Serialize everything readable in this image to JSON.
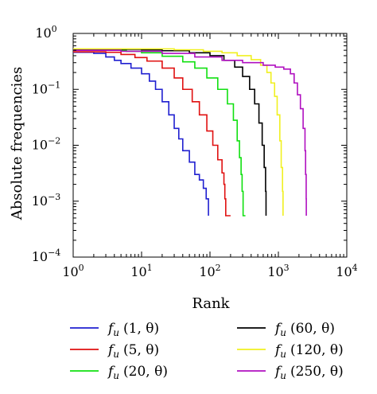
{
  "chart_data": {
    "type": "line",
    "title": "",
    "xlabel": "Rank",
    "ylabel": "Absolute frequencies",
    "xscale": "log",
    "yscale": "log",
    "xlim": [
      1,
      10000
    ],
    "ylim": [
      0.0001,
      1
    ],
    "grid": false,
    "legend_position": "bottom",
    "x_ticks": [
      {
        "value": 1,
        "base": "10",
        "exp": "0"
      },
      {
        "value": 10,
        "base": "10",
        "exp": "1"
      },
      {
        "value": 100,
        "base": "10",
        "exp": "2"
      },
      {
        "value": 1000,
        "base": "10",
        "exp": "3"
      },
      {
        "value": 10000,
        "base": "10",
        "exp": "4"
      }
    ],
    "y_ticks": [
      {
        "value": 1,
        "base": "10",
        "exp": "0"
      },
      {
        "value": 0.1,
        "base": "10",
        "exp": "−1"
      },
      {
        "value": 0.01,
        "base": "10",
        "exp": "−2"
      },
      {
        "value": 0.001,
        "base": "10",
        "exp": "−3"
      },
      {
        "value": 0.0001,
        "base": "10",
        "exp": "−4"
      }
    ],
    "series": [
      {
        "name": "f_u (1, θ)",
        "legend_var": "f",
        "legend_sub": "u",
        "legend_args": "(1, θ)",
        "color": "#1f1fd0",
        "points": [
          [
            1,
            0.46
          ],
          [
            1.5,
            0.46
          ],
          [
            2,
            0.44
          ],
          [
            3,
            0.38
          ],
          [
            4,
            0.33
          ],
          [
            5,
            0.29
          ],
          [
            7,
            0.24
          ],
          [
            10,
            0.19
          ],
          [
            13,
            0.14
          ],
          [
            16,
            0.1
          ],
          [
            20,
            0.06
          ],
          [
            25,
            0.035
          ],
          [
            30,
            0.02
          ],
          [
            35,
            0.013
          ],
          [
            40,
            0.008
          ],
          [
            50,
            0.005
          ],
          [
            60,
            0.003
          ],
          [
            70,
            0.0024
          ],
          [
            80,
            0.0017
          ],
          [
            88,
            0.0011
          ],
          [
            95,
            0.0011
          ],
          [
            95,
            0.00055
          ]
        ]
      },
      {
        "name": "f_u (5, θ)",
        "legend_var": "f",
        "legend_sub": "u",
        "legend_args": "(5, θ)",
        "color": "#e01010",
        "points": [
          [
            1,
            0.47
          ],
          [
            2,
            0.47
          ],
          [
            3,
            0.46
          ],
          [
            5,
            0.42
          ],
          [
            8,
            0.37
          ],
          [
            12,
            0.32
          ],
          [
            20,
            0.24
          ],
          [
            30,
            0.16
          ],
          [
            40,
            0.1
          ],
          [
            55,
            0.06
          ],
          [
            70,
            0.035
          ],
          [
            90,
            0.018
          ],
          [
            110,
            0.01
          ],
          [
            130,
            0.0055
          ],
          [
            150,
            0.0032
          ],
          [
            160,
            0.002
          ],
          [
            165,
            0.0011
          ],
          [
            170,
            0.00055
          ],
          [
            200,
            0.00055
          ]
        ]
      },
      {
        "name": "f_u (20, θ)",
        "legend_var": "f",
        "legend_sub": "u",
        "legend_args": "(20, θ)",
        "color": "#10e010",
        "points": [
          [
            1,
            0.5
          ],
          [
            3,
            0.5
          ],
          [
            6,
            0.48
          ],
          [
            10,
            0.45
          ],
          [
            20,
            0.39
          ],
          [
            40,
            0.31
          ],
          [
            60,
            0.24
          ],
          [
            90,
            0.16
          ],
          [
            130,
            0.1
          ],
          [
            180,
            0.055
          ],
          [
            220,
            0.028
          ],
          [
            250,
            0.012
          ],
          [
            270,
            0.006
          ],
          [
            285,
            0.003
          ],
          [
            295,
            0.0015
          ],
          [
            305,
            0.00055
          ],
          [
            330,
            0.00055
          ]
        ]
      },
      {
        "name": "f_u (60, θ)",
        "legend_var": "f",
        "legend_sub": "u",
        "legend_args": "(60, θ)",
        "color": "#000000",
        "points": [
          [
            1,
            0.52
          ],
          [
            5,
            0.52
          ],
          [
            10,
            0.51
          ],
          [
            20,
            0.49
          ],
          [
            50,
            0.45
          ],
          [
            100,
            0.4
          ],
          [
            160,
            0.33
          ],
          [
            230,
            0.25
          ],
          [
            300,
            0.17
          ],
          [
            380,
            0.1
          ],
          [
            450,
            0.055
          ],
          [
            520,
            0.025
          ],
          [
            580,
            0.01
          ],
          [
            620,
            0.004
          ],
          [
            650,
            0.0015
          ],
          [
            660,
            0.00055
          ]
        ]
      },
      {
        "name": "f_u (120, θ)",
        "legend_var": "f",
        "legend_sub": "u",
        "legend_args": "(120, θ)",
        "color": "#f0f020",
        "points": [
          [
            1,
            0.53
          ],
          [
            10,
            0.53
          ],
          [
            30,
            0.51
          ],
          [
            80,
            0.48
          ],
          [
            150,
            0.45
          ],
          [
            250,
            0.4
          ],
          [
            400,
            0.34
          ],
          [
            550,
            0.27
          ],
          [
            680,
            0.2
          ],
          [
            780,
            0.13
          ],
          [
            880,
            0.075
          ],
          [
            960,
            0.035
          ],
          [
            1050,
            0.012
          ],
          [
            1100,
            0.004
          ],
          [
            1150,
            0.0015
          ],
          [
            1170,
            0.00055
          ]
        ]
      },
      {
        "name": "f_u (250, θ)",
        "legend_var": "f",
        "legend_sub": "u",
        "legend_args": "(250, θ)",
        "color": "#b010c0",
        "points": [
          [
            1,
            0.5
          ],
          [
            5,
            0.48
          ],
          [
            20,
            0.44
          ],
          [
            60,
            0.38
          ],
          [
            150,
            0.33
          ],
          [
            300,
            0.3
          ],
          [
            600,
            0.27
          ],
          [
            900,
            0.25
          ],
          [
            1200,
            0.23
          ],
          [
            1500,
            0.19
          ],
          [
            1700,
            0.13
          ],
          [
            1900,
            0.08
          ],
          [
            2100,
            0.045
          ],
          [
            2300,
            0.02
          ],
          [
            2450,
            0.008
          ],
          [
            2500,
            0.003
          ],
          [
            2550,
            0.0011
          ],
          [
            2560,
            0.00055
          ]
        ]
      }
    ]
  }
}
